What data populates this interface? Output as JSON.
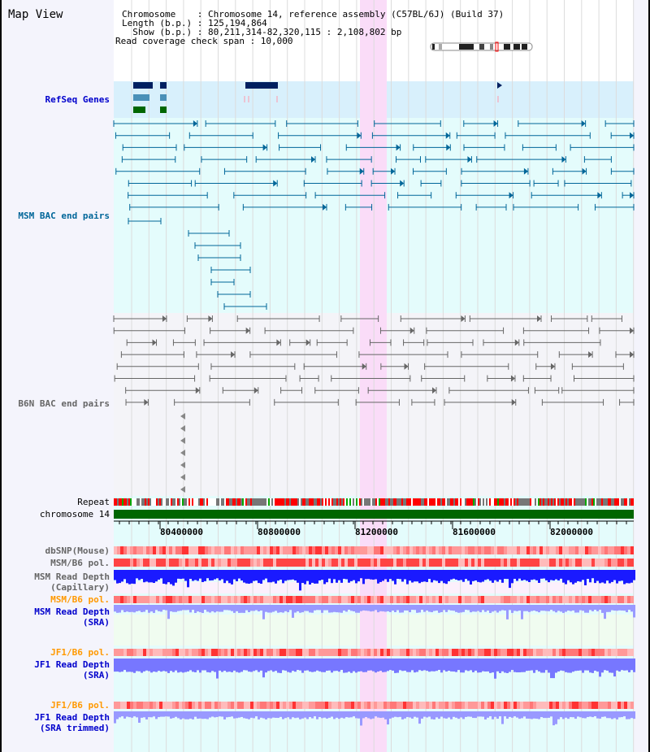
{
  "title": "Map View",
  "info": {
    "chromosome": "Chromosome    : Chromosome 14, reference assembly (C57BL/6J) (Build 37)",
    "length": "Length (b.p.) : 125,194,864",
    "show": "  Show (b.p.) : 80,211,314-82,320,115 : 2,108,802 bp",
    "coverage": "Read coverage check span : 10,000"
  },
  "tracks": {
    "refseq": "RefSeq Genes",
    "msm_bac": "MSM BAC end pairs",
    "b6n_bac": "B6N BAC end pairs",
    "repeat": "Repeat",
    "chromosome": "chromosome 14",
    "dbsnp": "dbSNP(Mouse)",
    "msm_b6_pol": "MSM/B6 pol.",
    "msm_depth_cap_1": "MSM Read Depth",
    "msm_depth_cap_2": "(Capillary)",
    "msm_b6_pol_2": "MSM/B6 pol.",
    "msm_depth_sra_1": "MSM Read Depth",
    "msm_depth_sra_2": "(SRA)",
    "jf1_pol": "JF1/B6 pol.",
    "jf1_depth_1": "JF1 Read Depth",
    "jf1_depth_2": "(SRA)",
    "jf1_pol_2": "JF1/B6 pol.",
    "jf1_trim_1": "JF1 Read Depth",
    "jf1_trim_2": "(SRA trimmed)"
  },
  "axis": {
    "ticks": [
      "80400000",
      "80800000",
      "81200000",
      "81600000",
      "82000000"
    ],
    "start": 80211314,
    "end": 82320115
  },
  "colors": {
    "refseq_label": "#0000cc",
    "msm_label": "#006699",
    "b6n_label": "#666666",
    "orange": "#ff9900",
    "blue": "#0000cc",
    "highlight": "#fadcf8"
  }
}
